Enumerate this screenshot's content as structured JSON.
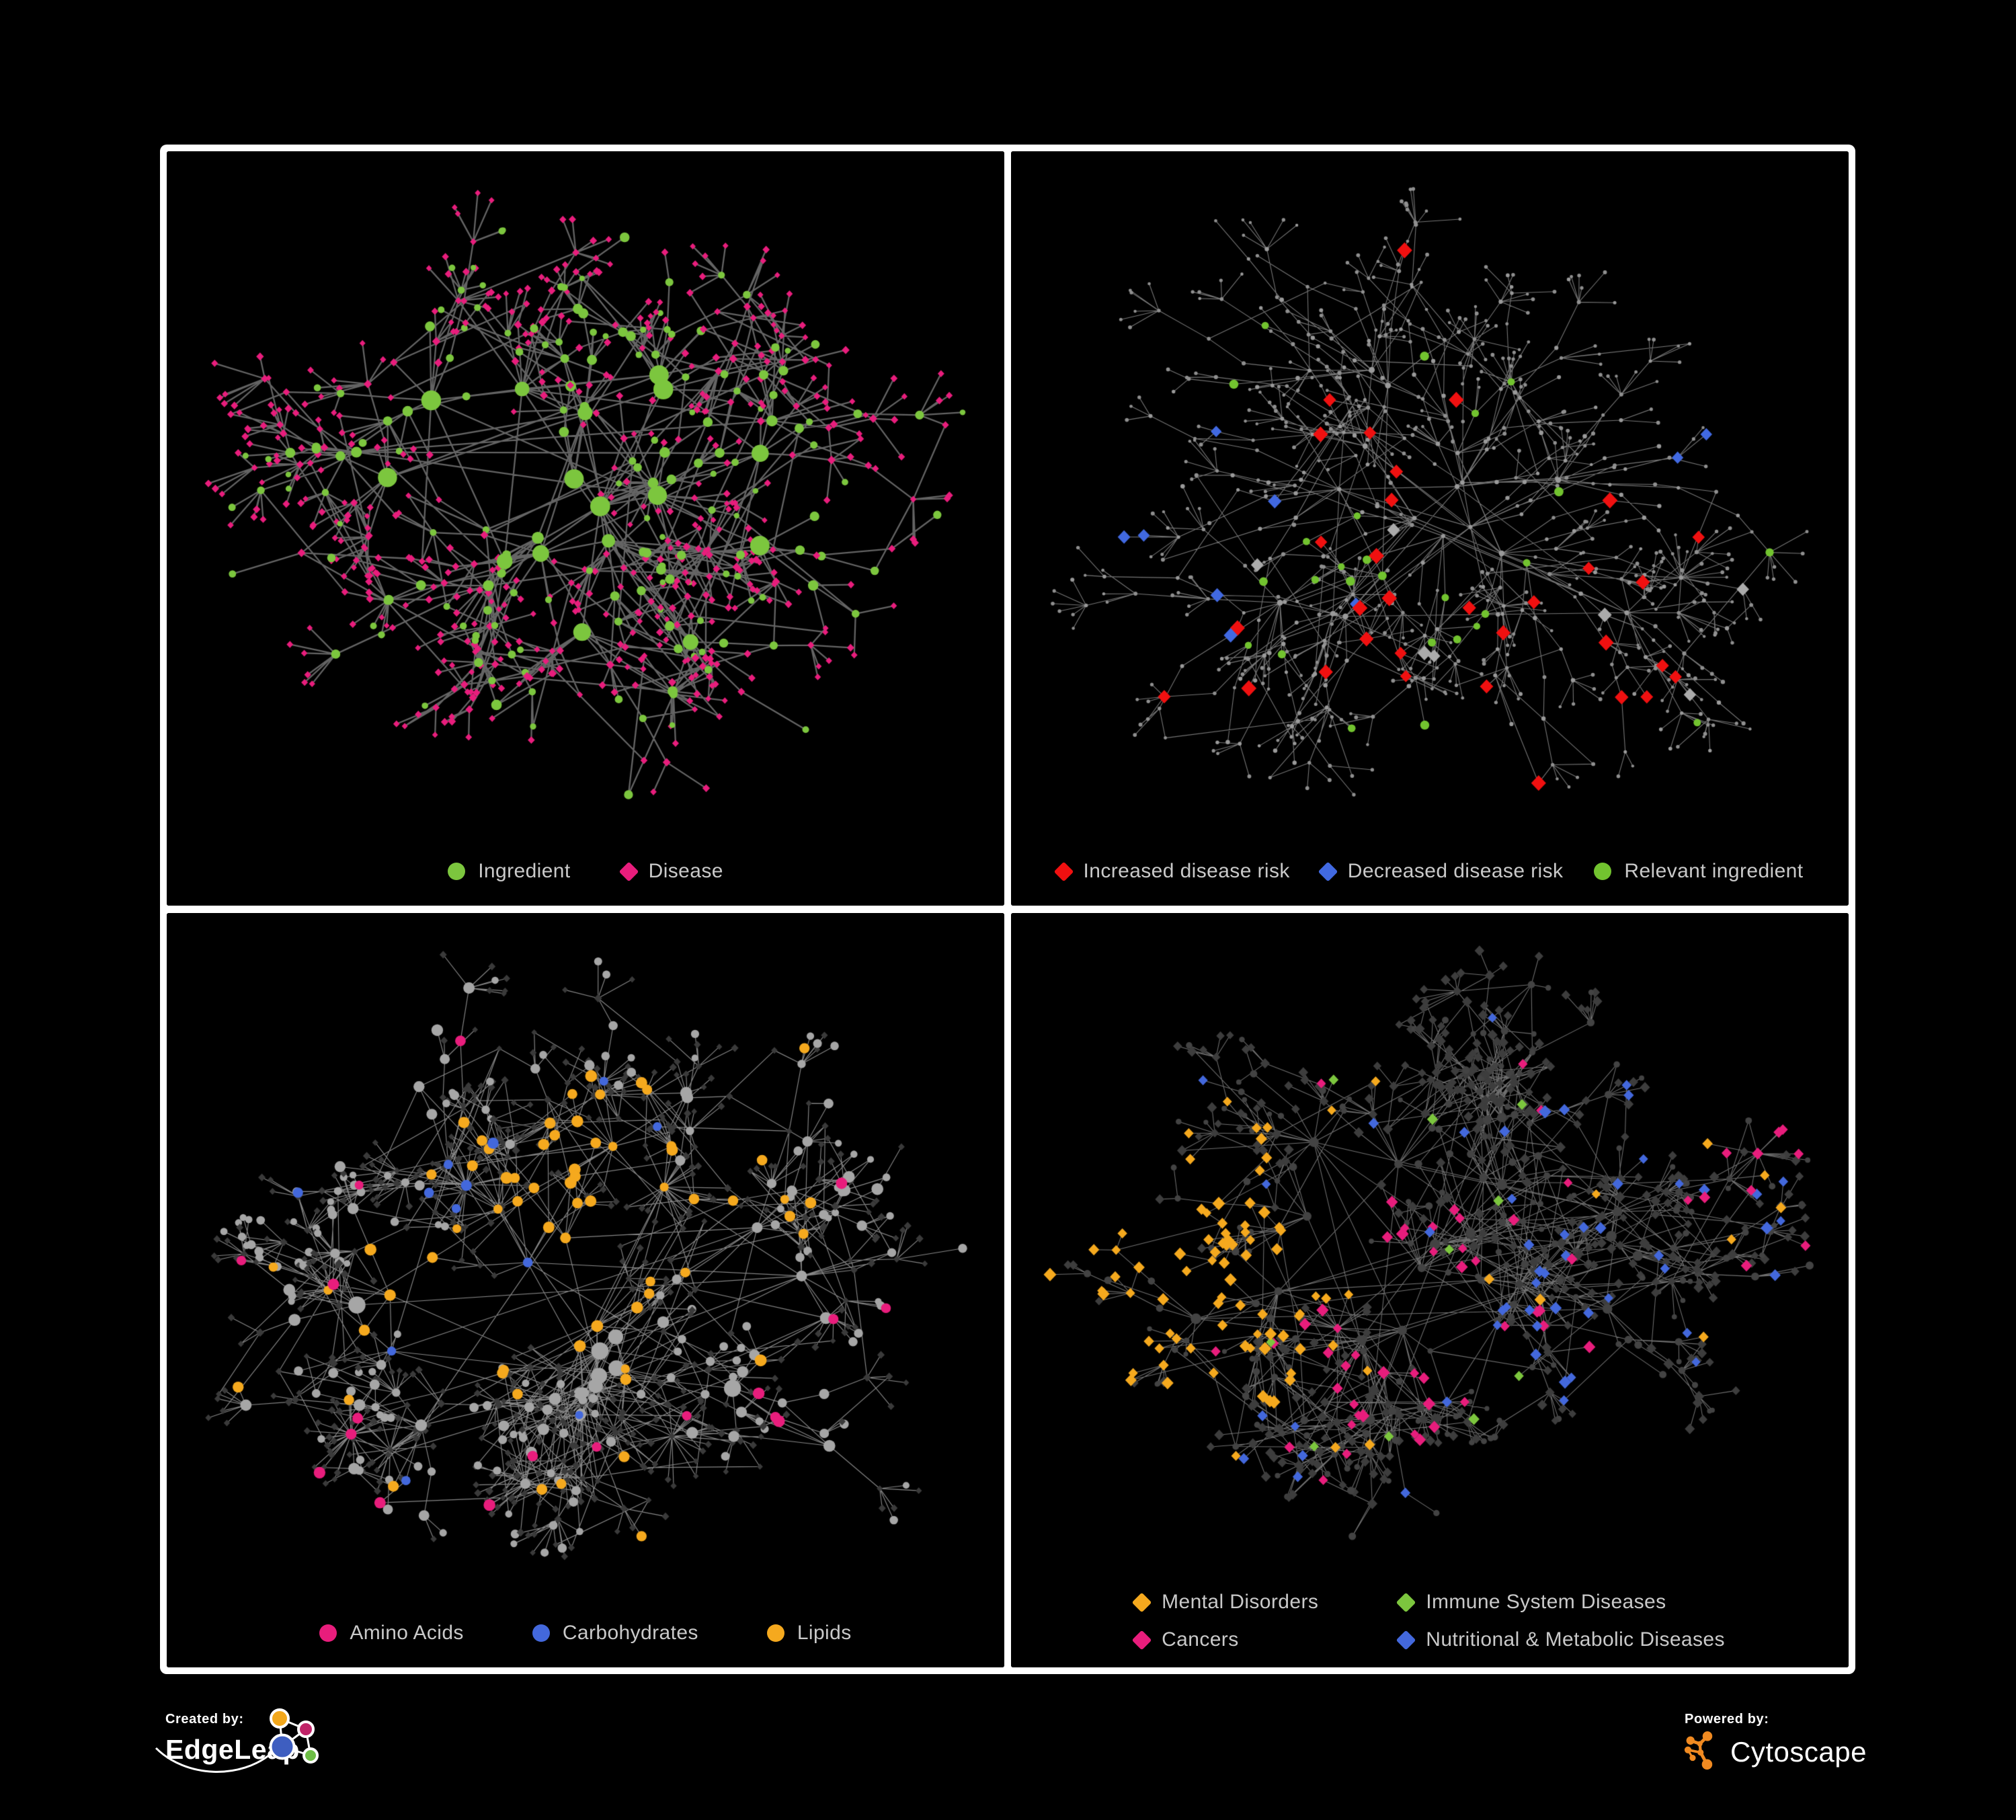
{
  "branding": {
    "created_by_label": "Created by:",
    "edgeleap_name": "EdgeLeap",
    "powered_by_label": "Powered by:",
    "cytoscape_name": "Cytoscape",
    "edgeleap_colors": {
      "orange": "#F2A71B",
      "magenta": "#C02368",
      "blue": "#3E5EC0",
      "green": "#6DBE45"
    },
    "cytoscape_color": "#F08A21",
    "text_color": "#FFFFFF"
  },
  "figure": {
    "background": "#000000",
    "frame_color": "#FFFFFF",
    "legend_text_color": "#C9C9C9"
  },
  "panels": [
    {
      "id": "ingredient-disease",
      "legend": [
        {
          "label": "Ingredient",
          "shape": "circle",
          "color": "#7CC63E"
        },
        {
          "label": "Disease",
          "shape": "diamond",
          "color": "#E81D7C"
        }
      ],
      "network": {
        "seed": 7,
        "hubs": 20,
        "spreadX": 0.21,
        "spreadY": 0.19,
        "branch": [
          4,
          8
        ],
        "chain": [
          1,
          3
        ],
        "step": 52,
        "fanProb": 0.22,
        "endFanProb": 0.6,
        "fan": [
          2,
          6
        ],
        "leafDist": 34,
        "stars": 5,
        "starLeaves": [
          10,
          20
        ],
        "extraEdges": 110,
        "extraDist": 0.2,
        "midIngredientP": 0.45,
        "leafIngredientP": 0.12,
        "margins": {
          "l": 62,
          "r": 62,
          "t": 62,
          "b": 165
        },
        "style": {
          "edge": {
            "color": "#6C6C6C",
            "width": 2.3,
            "alpha": 0.92
          },
          "ingredient": {
            "shape": "circle",
            "color": "#7CC63E",
            "size": {
              "hub": [
                8,
                15
              ],
              "mid": [
                5,
                8
              ],
              "leaf": [
                4,
                5.5
              ]
            }
          },
          "disease": {
            "shape": "diamond",
            "color": "#E81D7C",
            "size": {
              "hub": [
                6,
                8
              ],
              "mid": [
                5,
                6.5
              ],
              "leaf": [
                4.5,
                6
              ]
            }
          },
          "highlights": []
        }
      }
    },
    {
      "id": "disease-risk",
      "legend": [
        {
          "label": "Increased disease risk",
          "shape": "diamond",
          "color": "#F01010"
        },
        {
          "label": "Decreased disease risk",
          "shape": "diamond",
          "color": "#4169E1"
        },
        {
          "label": "Relevant ingredient",
          "shape": "circle",
          "color": "#72C32F"
        }
      ],
      "network": {
        "seed": 13,
        "hubs": 19,
        "spreadX": 0.22,
        "spreadY": 0.2,
        "branch": [
          4,
          8
        ],
        "chain": [
          2,
          4
        ],
        "step": 50,
        "fanProb": 0.2,
        "endFanProb": 0.55,
        "fan": [
          2,
          6
        ],
        "leafDist": 30,
        "stars": 6,
        "starLeaves": [
          8,
          18
        ],
        "extraEdges": 60,
        "extraDist": 0.17,
        "midIngredientP": 0.45,
        "leafIngredientP": 0.12,
        "margins": {
          "l": 62,
          "r": 62,
          "t": 56,
          "b": 165
        },
        "style": {
          "edge": {
            "color": "#8A8A8A",
            "width": 1.1,
            "alpha": 0.85
          },
          "ingredient": {
            "shape": "circle",
            "color": "#9A9A9A",
            "size": {
              "hub": [
                3,
                4.5
              ],
              "mid": [
                2.5,
                3.4
              ],
              "leaf": [
                2.2,
                3
              ]
            }
          },
          "disease": {
            "shape": "circle",
            "color": "#8F8F8F",
            "size": {
              "hub": [
                3,
                4.2
              ],
              "mid": [
                2.4,
                3.2
              ],
              "leaf": [
                2.2,
                3
              ]
            }
          },
          "highlights": [
            {
              "target": "disease",
              "shape": "diamond",
              "color": "#F01010",
              "count": 28,
              "r": [
                9,
                12
              ],
              "region": [
                0.44,
                0.55,
                0.26,
                0.17
              ]
            },
            {
              "target": "disease",
              "shape": "diamond",
              "color": "#F01010",
              "count": 4,
              "r": [
                9,
                11
              ],
              "region": [
                0.72,
                0.7,
                0.1,
                0.1
              ]
            },
            {
              "target": "disease",
              "shape": "diamond",
              "color": "#4169E1",
              "count": 7,
              "r": [
                8,
                11
              ],
              "region": [
                0.26,
                0.57,
                0.09,
                0.09
              ]
            },
            {
              "target": "disease",
              "shape": "diamond",
              "color": "#4169E1",
              "count": 2,
              "r": [
                9,
                10
              ],
              "region": [
                0.84,
                0.4,
                0.05,
                0.05
              ]
            },
            {
              "target": "disease",
              "shape": "diamond",
              "color": "#ABABAB",
              "count": 7,
              "r": [
                9,
                11
              ],
              "region": [
                0.43,
                0.57,
                0.23,
                0.16
              ]
            },
            {
              "target": "ingredient",
              "shape": "circle",
              "color": "#72C32F",
              "count": 26,
              "r": [
                5,
                7
              ],
              "region": [
                0.44,
                0.54,
                0.23,
                0.16
              ]
            }
          ]
        }
      }
    },
    {
      "id": "ingredient-classes",
      "legend": [
        {
          "label": "Amino Acids",
          "shape": "circle",
          "color": "#E81D7C"
        },
        {
          "label": "Carbohydrates",
          "shape": "circle",
          "color": "#4368DC"
        },
        {
          "label": "Lipids",
          "shape": "circle",
          "color": "#F5A91E"
        }
      ],
      "network": {
        "seed": 23,
        "hubs": 22,
        "spreadX": 0.21,
        "spreadY": 0.19,
        "branch": [
          4,
          8
        ],
        "chain": [
          1,
          3
        ],
        "step": 50,
        "fanProb": 0.24,
        "endFanProb": 0.6,
        "fan": [
          2,
          7
        ],
        "leafDist": 30,
        "stars": 6,
        "starLeaves": [
          12,
          24
        ],
        "extraEdges": 240,
        "extraDist": 0.16,
        "midIngredientP": 0.5,
        "leafIngredientP": 0.25,
        "margins": {
          "l": 62,
          "r": 62,
          "t": 62,
          "b": 165
        },
        "style": {
          "edge": {
            "color": "#A9A9A9",
            "width": 1.15,
            "alpha": 0.8
          },
          "ingredient": {
            "shape": "circle",
            "color": "#A6A6A6",
            "size": {
              "hub": [
                8,
                13
              ],
              "mid": [
                6,
                9
              ],
              "leaf": [
                5,
                7
              ]
            }
          },
          "disease": {
            "shape": "diamond",
            "color": "#3A3A3A",
            "size": {
              "hub": [
                5,
                7
              ],
              "mid": [
                4.5,
                6.5
              ],
              "leaf": [
                4.5,
                6
              ]
            }
          },
          "highlights": [
            {
              "target": "ingredient",
              "shape": "circle",
              "color": "#F5A91E",
              "count": 36,
              "r": [
                6.5,
                9
              ],
              "region": [
                0.5,
                0.36,
                0.065,
                0.06
              ]
            },
            {
              "target": "ingredient",
              "shape": "circle",
              "color": "#F5A91E",
              "count": 16,
              "r": [
                6.5,
                9
              ],
              "region": [
                0.44,
                0.5,
                0.12,
                0.09
              ]
            },
            {
              "target": "ingredient",
              "shape": "circle",
              "color": "#F5A91E",
              "count": 14,
              "r": [
                6,
                8.5
              ],
              "region": [
                0.55,
                0.42,
                0.3,
                0.28
              ]
            },
            {
              "target": "ingredient",
              "shape": "circle",
              "color": "#4368DC",
              "count": 9,
              "r": [
                6.5,
                8.5
              ],
              "region": [
                0.49,
                0.4,
                0.07,
                0.06
              ]
            },
            {
              "target": "ingredient",
              "shape": "circle",
              "color": "#4368DC",
              "count": 4,
              "r": [
                6,
                8
              ],
              "region": null
            },
            {
              "target": "ingredient",
              "shape": "circle",
              "color": "#E81D7C",
              "count": 18,
              "r": [
                6.5,
                9
              ],
              "region": null
            }
          ]
        }
      }
    },
    {
      "id": "disease-classes",
      "legend": [
        {
          "label": "Mental Disorders",
          "shape": "diamond",
          "color": "#F5A91E"
        },
        {
          "label": "Immune System Diseases",
          "shape": "diamond",
          "color": "#7CC63E"
        },
        {
          "label": "Cancers",
          "shape": "diamond",
          "color": "#E81D7C"
        },
        {
          "label": "Nutritional & Metabolic Diseases",
          "shape": "diamond",
          "color": "#4368DC"
        }
      ],
      "network": {
        "seed": 31,
        "hubs": 22,
        "spreadX": 0.22,
        "spreadY": 0.19,
        "branch": [
          4,
          8
        ],
        "chain": [
          1,
          3
        ],
        "step": 50,
        "fanProb": 0.24,
        "endFanProb": 0.6,
        "fan": [
          2,
          7
        ],
        "leafDist": 30,
        "stars": 6,
        "starLeaves": [
          10,
          22
        ],
        "extraEdges": 220,
        "extraDist": 0.16,
        "midIngredientP": 0.4,
        "leafIngredientP": 0.2,
        "margins": {
          "l": 58,
          "r": 58,
          "t": 56,
          "b": 195
        },
        "style": {
          "edge": {
            "color": "#9B9B9B",
            "width": 1.05,
            "alpha": 0.72
          },
          "ingredient": {
            "shape": "circle",
            "color": "#434343",
            "size": {
              "hub": [
                5,
                8
              ],
              "mid": [
                4,
                6
              ],
              "leaf": [
                3.5,
                5
              ]
            }
          },
          "disease": {
            "shape": "diamond",
            "color": "#3D3D3D",
            "size": {
              "hub": [
                7,
                9
              ],
              "mid": [
                6.5,
                8.5
              ],
              "leaf": [
                6,
                8
              ]
            }
          },
          "highlights": [
            {
              "target": "disease",
              "shape": "diamond",
              "color": "#F5A91E",
              "count": 78,
              "r": [
                7,
                10
              ],
              "region": [
                0.21,
                0.47,
                0.085,
                0.095
              ]
            },
            {
              "target": "disease",
              "shape": "diamond",
              "color": "#F5A91E",
              "count": 12,
              "r": [
                7,
                9
              ],
              "region": [
                0.4,
                0.3,
                0.45,
                0.4
              ]
            },
            {
              "target": "disease",
              "shape": "diamond",
              "color": "#E81D7C",
              "count": 40,
              "r": [
                7,
                10
              ],
              "region": [
                0.46,
                0.52,
                0.1,
                0.09
              ]
            },
            {
              "target": "disease",
              "shape": "diamond",
              "color": "#E81D7C",
              "count": 8,
              "r": [
                7,
                9
              ],
              "region": [
                0.88,
                0.28,
                0.05,
                0.05
              ]
            },
            {
              "target": "disease",
              "shape": "diamond",
              "color": "#E81D7C",
              "count": 8,
              "r": [
                7,
                9
              ],
              "region": null
            },
            {
              "target": "disease",
              "shape": "diamond",
              "color": "#4368DC",
              "count": 26,
              "r": [
                7,
                10
              ],
              "region": [
                0.73,
                0.42,
                0.15,
                0.18
              ]
            },
            {
              "target": "disease",
              "shape": "diamond",
              "color": "#4368DC",
              "count": 12,
              "r": [
                7,
                9
              ],
              "region": [
                0.58,
                0.57,
                0.05,
                0.05
              ]
            },
            {
              "target": "disease",
              "shape": "diamond",
              "color": "#4368DC",
              "count": 14,
              "r": [
                7,
                9
              ],
              "region": null
            },
            {
              "target": "disease",
              "shape": "diamond",
              "color": "#7CC63E",
              "count": 10,
              "r": [
                7,
                9
              ],
              "region": [
                0.45,
                0.5,
                0.3,
                0.3
              ]
            }
          ]
        }
      }
    }
  ]
}
